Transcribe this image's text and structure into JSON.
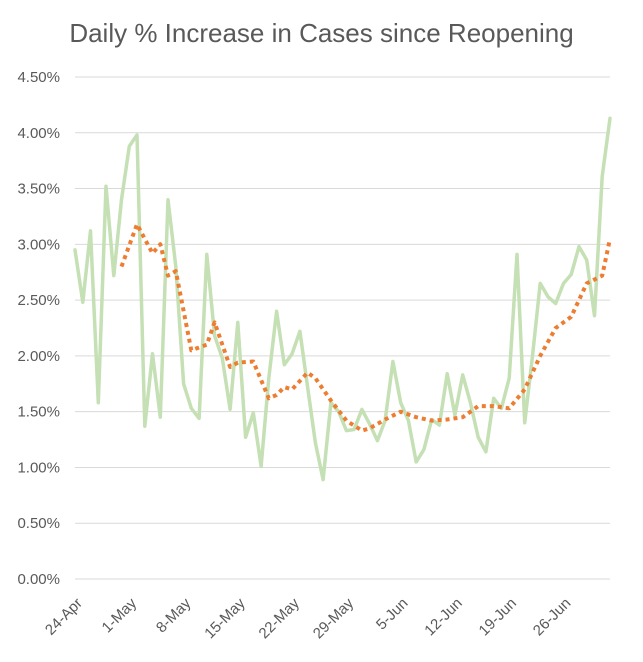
{
  "chart_data": {
    "type": "line",
    "title": "Daily % Increase in Cases since Reopening",
    "xlabel": "",
    "ylabel": "",
    "x_start": "24-Apr",
    "x_tick_labels": [
      "24-Apr",
      "1-May",
      "8-May",
      "15-May",
      "22-May",
      "29-May",
      "5-Jun",
      "12-Jun",
      "19-Jun",
      "26-Jun"
    ],
    "y_tick_labels": [
      "0.00%",
      "0.50%",
      "1.00%",
      "1.50%",
      "2.00%",
      "2.50%",
      "3.00%",
      "3.50%",
      "4.00%",
      "4.50%"
    ],
    "ylim": [
      0,
      4.5
    ],
    "grid": true,
    "legend": "none",
    "series": [
      {
        "color": "#C5E0B4",
        "style": "solid",
        "points": [
          [
            "24-Apr",
            2.95
          ],
          [
            "25-Apr",
            2.48
          ],
          [
            "26-Apr",
            3.12
          ],
          [
            "27-Apr",
            1.58
          ],
          [
            "28-Apr",
            3.52
          ],
          [
            "29-Apr",
            2.72
          ],
          [
            "30-Apr",
            3.4
          ],
          [
            "1-May",
            3.88
          ],
          [
            "2-May",
            3.98
          ],
          [
            "3-May",
            1.37
          ],
          [
            "4-May",
            2.02
          ],
          [
            "5-May",
            1.45
          ],
          [
            "6-May",
            3.4
          ],
          [
            "7-May",
            2.8
          ],
          [
            "8-May",
            1.75
          ],
          [
            "9-May",
            1.53
          ],
          [
            "10-May",
            1.44
          ],
          [
            "11-May",
            2.91
          ],
          [
            "12-May",
            2.18
          ],
          [
            "13-May",
            1.98
          ],
          [
            "14-May",
            1.52
          ],
          [
            "15-May",
            2.3
          ],
          [
            "16-May",
            1.27
          ],
          [
            "17-May",
            1.49
          ],
          [
            "18-May",
            1.01
          ],
          [
            "19-May",
            1.8
          ],
          [
            "20-May",
            2.4
          ],
          [
            "21-May",
            1.92
          ],
          [
            "22-May",
            2.02
          ],
          [
            "23-May",
            2.22
          ],
          [
            "24-May",
            1.72
          ],
          [
            "25-May",
            1.22
          ],
          [
            "26-May",
            0.89
          ],
          [
            "27-May",
            1.58
          ],
          [
            "28-May",
            1.5
          ],
          [
            "29-May",
            1.33
          ],
          [
            "30-May",
            1.34
          ],
          [
            "31-May",
            1.52
          ],
          [
            "1-Jun",
            1.39
          ],
          [
            "2-Jun",
            1.24
          ],
          [
            "3-Jun",
            1.42
          ],
          [
            "4-Jun",
            1.95
          ],
          [
            "5-Jun",
            1.58
          ],
          [
            "6-Jun",
            1.42
          ],
          [
            "7-Jun",
            1.05
          ],
          [
            "8-Jun",
            1.16
          ],
          [
            "9-Jun",
            1.43
          ],
          [
            "10-Jun",
            1.38
          ],
          [
            "11-Jun",
            1.84
          ],
          [
            "12-Jun",
            1.47
          ],
          [
            "13-Jun",
            1.83
          ],
          [
            "14-Jun",
            1.58
          ],
          [
            "15-Jun",
            1.27
          ],
          [
            "16-Jun",
            1.14
          ],
          [
            "17-Jun",
            1.62
          ],
          [
            "18-Jun",
            1.53
          ],
          [
            "19-Jun",
            1.8
          ],
          [
            "20-Jun",
            2.91
          ],
          [
            "21-Jun",
            1.4
          ],
          [
            "22-Jun",
            2.0
          ],
          [
            "23-Jun",
            2.65
          ],
          [
            "24-Jun",
            2.53
          ],
          [
            "25-Jun",
            2.47
          ],
          [
            "26-Jun",
            2.65
          ],
          [
            "27-Jun",
            2.73
          ],
          [
            "28-Jun",
            2.98
          ],
          [
            "29-Jun",
            2.86
          ],
          [
            "30-Jun",
            2.36
          ],
          [
            "1-Jul",
            3.61
          ],
          [
            "2-Jul",
            4.13
          ]
        ]
      },
      {
        "color": "#ED7D31",
        "style": "dotted",
        "points": [
          [
            "30-Apr",
            2.8
          ],
          [
            "2-May",
            3.18
          ],
          [
            "4-May",
            2.92
          ],
          [
            "5-May",
            3.0
          ],
          [
            "6-May",
            2.72
          ],
          [
            "7-May",
            2.76
          ],
          [
            "9-May",
            2.05
          ],
          [
            "11-May",
            2.1
          ],
          [
            "12-May",
            2.3
          ],
          [
            "14-May",
            1.9
          ],
          [
            "15-May",
            1.94
          ],
          [
            "17-May",
            1.95
          ],
          [
            "19-May",
            1.62
          ],
          [
            "20-May",
            1.65
          ],
          [
            "21-May",
            1.72
          ],
          [
            "22-May",
            1.7
          ],
          [
            "24-May",
            1.85
          ],
          [
            "25-May",
            1.8
          ],
          [
            "27-May",
            1.6
          ],
          [
            "29-May",
            1.42
          ],
          [
            "31-May",
            1.33
          ],
          [
            "1-Jun",
            1.35
          ],
          [
            "3-Jun",
            1.43
          ],
          [
            "5-Jun",
            1.5
          ],
          [
            "7-Jun",
            1.45
          ],
          [
            "9-Jun",
            1.42
          ],
          [
            "11-Jun",
            1.43
          ],
          [
            "13-Jun",
            1.45
          ],
          [
            "15-Jun",
            1.55
          ],
          [
            "17-Jun",
            1.55
          ],
          [
            "19-Jun",
            1.53
          ],
          [
            "21-Jun",
            1.7
          ],
          [
            "23-Jun",
            2.0
          ],
          [
            "25-Jun",
            2.25
          ],
          [
            "27-Jun",
            2.35
          ],
          [
            "29-Jun",
            2.65
          ],
          [
            "1-Jul",
            2.72
          ],
          [
            "2-Jul",
            3.05
          ]
        ]
      }
    ]
  }
}
